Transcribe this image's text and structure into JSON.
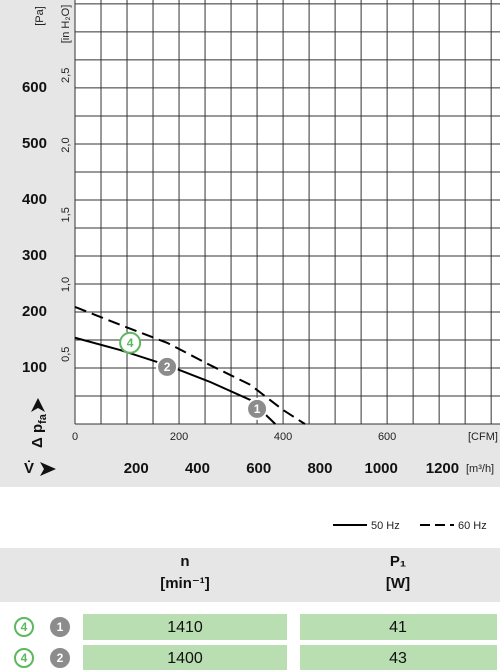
{
  "chart_data": {
    "type": "line",
    "y_unit": "[Pa]",
    "y2_unit": "[in H₂O]",
    "x_unit": "[CFM]",
    "x2_unit": "[m³/h]",
    "ylabel": "Δ p",
    "ylabel_sub": "fa",
    "xlabel": "V̇",
    "xlim": [
      0,
      817
    ],
    "xticks": [
      0,
      200,
      400,
      600
    ],
    "x2lim": [
      0,
      1388
    ],
    "x2ticks": [
      200,
      400,
      600,
      800,
      1000,
      1200
    ],
    "ylim": [
      0,
      757
    ],
    "yticks": [
      100,
      200,
      300,
      400,
      500,
      600
    ],
    "y2lim": [
      0,
      3.04
    ],
    "y2ticks": [
      {
        "value": 0.5,
        "label": "0,5"
      },
      {
        "value": 1.0,
        "label": "1,0"
      },
      {
        "value": 1.5,
        "label": "1,5"
      },
      {
        "value": 2.0,
        "label": "2,0"
      },
      {
        "value": 2.5,
        "label": "2,5"
      }
    ],
    "xgrid": [
      0,
      50,
      100,
      150,
      200,
      250,
      300,
      350,
      400,
      450,
      500,
      550,
      600,
      650,
      700,
      750,
      800
    ],
    "ygrid": [
      0,
      50,
      100,
      150,
      200,
      250,
      300,
      350,
      400,
      450,
      500,
      550,
      600,
      650,
      700,
      750
    ],
    "series": [
      {
        "name": "50 Hz",
        "style": "solid",
        "color": "#000000",
        "x": [
          0,
          87,
          177,
          260,
          337,
          385
        ],
        "values": [
          154,
          132,
          105,
          75,
          43,
          0
        ]
      },
      {
        "name": "60 Hz",
        "style": "dashed",
        "color": "#000000",
        "x": [
          0,
          87,
          177,
          260,
          337,
          400,
          442
        ],
        "values": [
          209,
          177,
          145,
          105,
          70,
          25,
          0
        ]
      }
    ],
    "points": [
      {
        "label": "4",
        "x": 106,
        "y": 145,
        "color": "#5cb85c",
        "outline": true
      },
      {
        "label": "2",
        "x": 177,
        "y": 102,
        "color": "#8c8c8c",
        "outline": false
      },
      {
        "label": "1",
        "x": 350,
        "y": 27,
        "color": "#8c8c8c",
        "outline": false
      }
    ]
  },
  "table": {
    "columns": [
      {
        "symbol": "n",
        "unit": "[min⁻¹]"
      },
      {
        "symbol": "P₁",
        "unit": "[W]"
      }
    ],
    "rows": [
      {
        "points": [
          "4",
          "1"
        ],
        "cells": [
          1410,
          41
        ]
      },
      {
        "points": [
          "4",
          "2"
        ],
        "cells": [
          1400,
          43
        ]
      }
    ]
  }
}
